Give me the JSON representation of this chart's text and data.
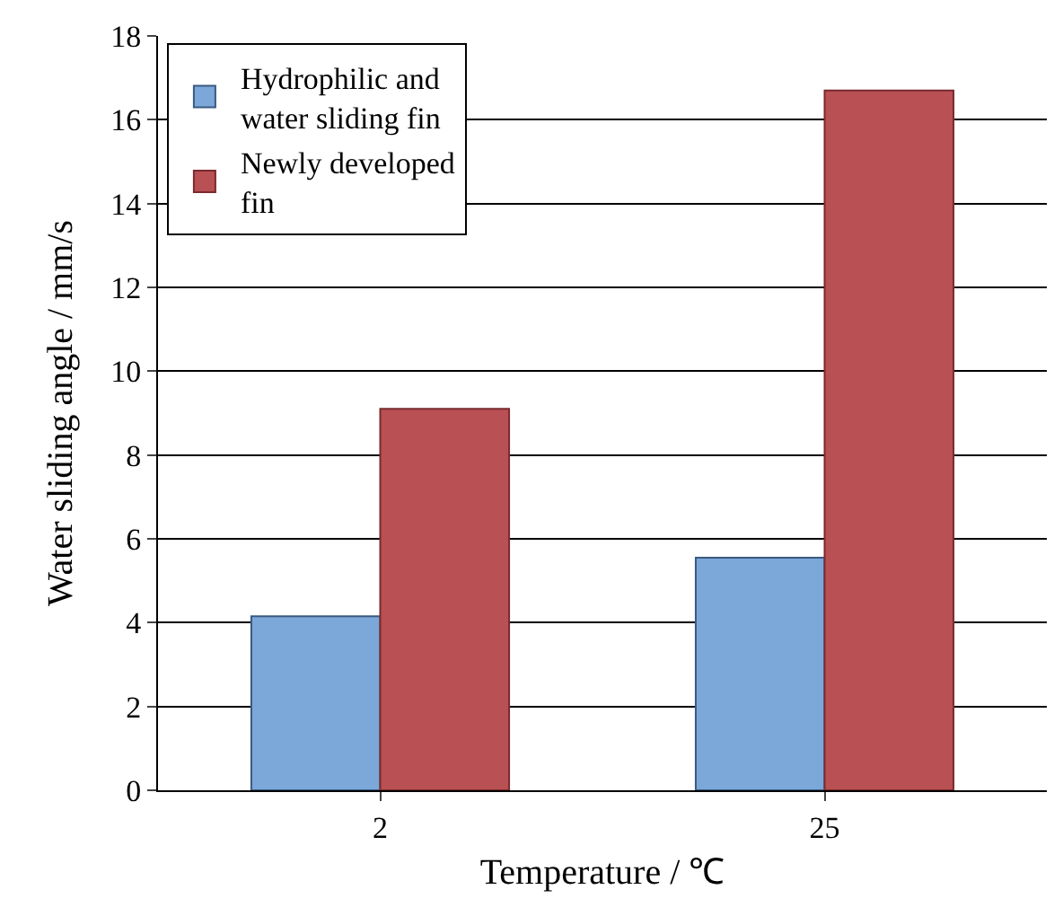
{
  "chart_data": {
    "type": "bar",
    "xlabel": "Temperature / ℃",
    "ylabel": "Water sliding angle / mm/s",
    "categories": [
      "2",
      "25"
    ],
    "series": [
      {
        "name": "Hydrophilic and water sliding fin",
        "color": "#7ba7d9",
        "values": [
          4.15,
          5.55
        ]
      },
      {
        "name": "Newly developed fin",
        "color": "#b85054",
        "values": [
          9.1,
          16.7
        ]
      }
    ],
    "ylim": [
      0,
      18
    ],
    "yticks": [
      0,
      2,
      4,
      6,
      8,
      10,
      12,
      14,
      16,
      18
    ],
    "grid": "y",
    "legend": "top left"
  }
}
